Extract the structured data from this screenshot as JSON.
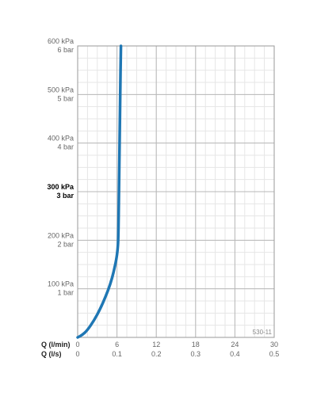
{
  "chart_data": {
    "type": "line",
    "x_unit_rows": [
      {
        "label": "Q (l/min)",
        "ticks": [
          "0",
          "6",
          "12",
          "18",
          "24",
          "30"
        ],
        "values": [
          0,
          6,
          12,
          18,
          24,
          30
        ]
      },
      {
        "label": "Q (l/s)",
        "ticks": [
          "0",
          "0.1",
          "0.2",
          "0.3",
          "0.4",
          "0.5"
        ]
      }
    ],
    "y_ticks": [
      {
        "value": 100,
        "kpa": "100 kPa",
        "bar": "1 bar",
        "emphasis": false
      },
      {
        "value": 200,
        "kpa": "200 kPa",
        "bar": "2 bar",
        "emphasis": false
      },
      {
        "value": 300,
        "kpa": "300 kPa",
        "bar": "3 bar",
        "emphasis": true
      },
      {
        "value": 400,
        "kpa": "400 kPa",
        "bar": "4 bar",
        "emphasis": false
      },
      {
        "value": 500,
        "kpa": "500 kPa",
        "bar": "5 bar",
        "emphasis": false
      },
      {
        "value": 600,
        "kpa": "600 kPa",
        "bar": "6 bar",
        "emphasis": false
      }
    ],
    "xlim": [
      0,
      30
    ],
    "ylim": [
      0,
      600
    ],
    "grid": true,
    "reference": "530-11",
    "series": [
      {
        "color": "#1f77b4",
        "points": [
          [
            0,
            0
          ],
          [
            0.7,
            5
          ],
          [
            1.5,
            15
          ],
          [
            2.5,
            35
          ],
          [
            3.5,
            60
          ],
          [
            4.3,
            85
          ],
          [
            5.0,
            110
          ],
          [
            5.5,
            135
          ],
          [
            5.9,
            160
          ],
          [
            6.1,
            180
          ],
          [
            6.2,
            200
          ],
          [
            6.3,
            300
          ],
          [
            6.4,
            400
          ],
          [
            6.5,
            500
          ],
          [
            6.6,
            600
          ]
        ]
      }
    ]
  }
}
